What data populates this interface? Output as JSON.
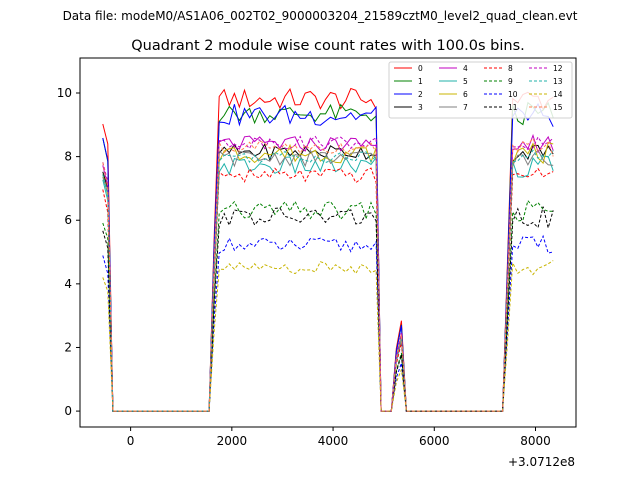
{
  "chart_data": {
    "type": "line",
    "suptitle": "Data file: modeM0/AS1A06_002T02_9000003204_21589cztM0_level2_quad_clean.evt",
    "title": "Quadrant 2 module wise count rates with 100.0s bins.",
    "xlabel": "",
    "ylabel": "",
    "x_offset_label": "+3.0712e8",
    "xlim": [
      -1000,
      8800
    ],
    "ylim": [
      -0.5,
      11.1
    ],
    "x_ticks": [
      0,
      2000,
      4000,
      6000,
      8000
    ],
    "y_ticks": [
      0,
      2,
      4,
      6,
      8,
      10
    ],
    "grid": false,
    "legend_position": "top-right",
    "series": [
      {
        "name": "0",
        "color": "#ff0000",
        "dash": "solid",
        "level": 9.8,
        "amp": 0.35
      },
      {
        "name": "1",
        "color": "#008000",
        "dash": "solid",
        "level": 9.35,
        "amp": 0.3
      },
      {
        "name": "2",
        "color": "#0000ff",
        "dash": "solid",
        "level": 9.3,
        "amp": 0.35
      },
      {
        "name": "3",
        "color": "#000000",
        "dash": "solid",
        "level": 8.15,
        "amp": 0.25
      },
      {
        "name": "4",
        "color": "#c000c0",
        "dash": "solid",
        "level": 8.4,
        "amp": 0.25
      },
      {
        "name": "5",
        "color": "#20b2aa",
        "dash": "solid",
        "level": 7.7,
        "amp": 0.3
      },
      {
        "name": "6",
        "color": "#c8b400",
        "dash": "solid",
        "level": 8.1,
        "amp": 0.3
      },
      {
        "name": "7",
        "color": "#808080",
        "dash": "solid",
        "level": 7.95,
        "amp": 0.25
      },
      {
        "name": "8",
        "color": "#ff0000",
        "dash": "dashed",
        "level": 7.4,
        "amp": 0.25
      },
      {
        "name": "9",
        "color": "#008000",
        "dash": "dashed",
        "level": 6.3,
        "amp": 0.3
      },
      {
        "name": "10",
        "color": "#0000ff",
        "dash": "dashed",
        "level": 5.2,
        "amp": 0.25
      },
      {
        "name": "11",
        "color": "#000000",
        "dash": "dashed",
        "level": 6.1,
        "amp": 0.3
      },
      {
        "name": "12",
        "color": "#c000c0",
        "dash": "dashed",
        "level": 8.45,
        "amp": 0.2
      },
      {
        "name": "13",
        "color": "#20b2aa",
        "dash": "dashed",
        "level": 8.0,
        "amp": 0.2
      },
      {
        "name": "14",
        "color": "#c8b400",
        "dash": "dashed",
        "level": 4.5,
        "amp": 0.2
      },
      {
        "name": "15",
        "color": "#ff7f50",
        "dash": "dashed",
        "level": 8.3,
        "amp": 0.25
      }
    ]
  }
}
